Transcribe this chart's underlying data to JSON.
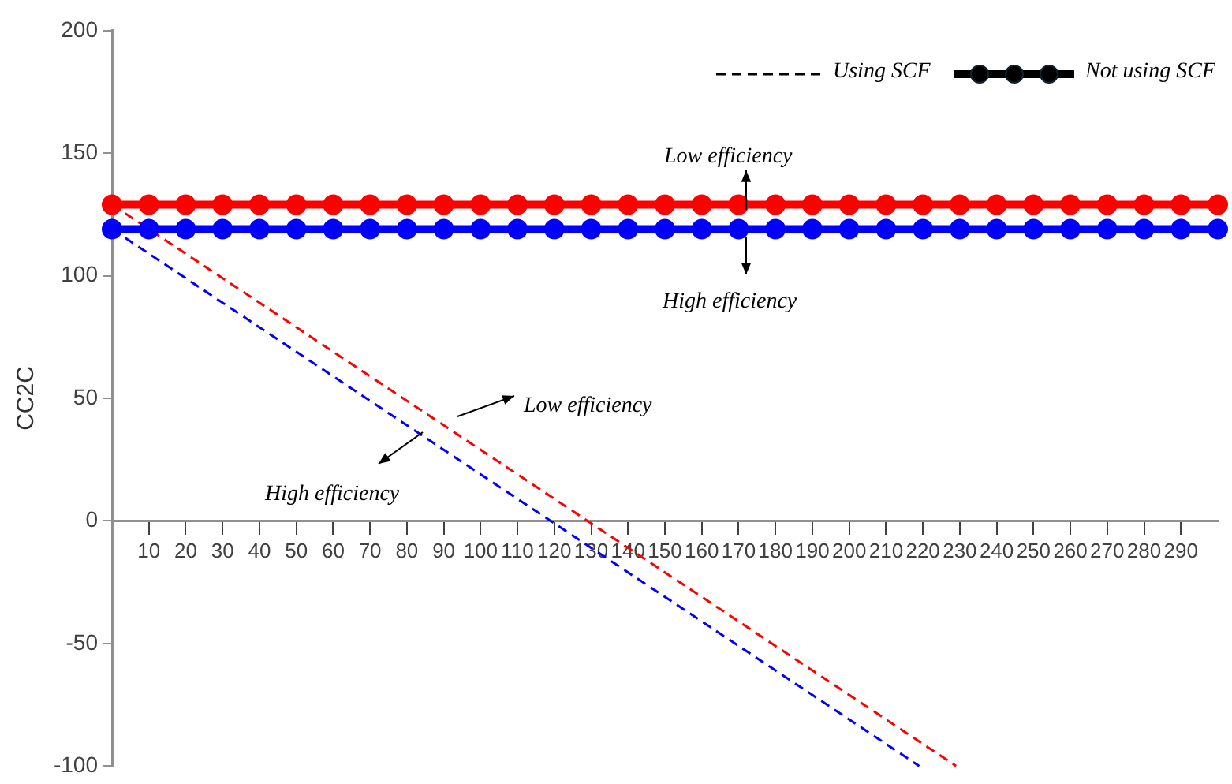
{
  "chart_data": {
    "type": "line",
    "ylabel": "CC2C",
    "annotations": [
      "Using SCF",
      "Not using SCF",
      "Low efficiency",
      "High efficiency",
      "Low efficiency",
      "High efficiency"
    ],
    "xlim": [
      0,
      300
    ],
    "xticks": [
      10,
      20,
      30,
      40,
      50,
      60,
      70,
      80,
      90,
      100,
      110,
      120,
      130,
      140,
      150,
      160,
      170,
      180,
      190,
      200,
      210,
      220,
      230,
      240,
      250,
      260,
      270,
      280,
      290
    ],
    "ylim": [
      -100,
      200
    ],
    "yticks": [
      -100,
      -50,
      0,
      50,
      100,
      150,
      200
    ],
    "grid": false,
    "legend": false,
    "series": [
      {
        "color": "#ff0000",
        "marker": "circle",
        "line_style": "solid",
        "x": [
          0,
          10,
          20,
          30,
          40,
          50,
          60,
          70,
          80,
          90,
          100,
          110,
          120,
          130,
          140,
          150,
          160,
          170,
          180,
          190,
          200,
          210,
          220,
          230,
          240,
          250,
          260,
          270,
          280,
          290,
          300
        ],
        "values": [
          129,
          129,
          129,
          129,
          129,
          129,
          129,
          129,
          129,
          129,
          129,
          129,
          129,
          129,
          129,
          129,
          129,
          129,
          129,
          129,
          129,
          129,
          129,
          129,
          129,
          129,
          129,
          129,
          129,
          129,
          129
        ]
      },
      {
        "color": "#0000ff",
        "marker": "circle",
        "line_style": "solid",
        "x": [
          0,
          10,
          20,
          30,
          40,
          50,
          60,
          70,
          80,
          90,
          100,
          110,
          120,
          130,
          140,
          150,
          160,
          170,
          180,
          190,
          200,
          210,
          220,
          230,
          240,
          250,
          260,
          270,
          280,
          290,
          300
        ],
        "values": [
          119,
          119,
          119,
          119,
          119,
          119,
          119,
          119,
          119,
          119,
          119,
          119,
          119,
          119,
          119,
          119,
          119,
          119,
          119,
          119,
          119,
          119,
          119,
          119,
          119,
          119,
          119,
          119,
          119,
          119,
          119
        ]
      },
      {
        "color": "#ff0000",
        "marker": "none",
        "line_style": "dashed",
        "x": [
          0,
          229
        ],
        "values": [
          129,
          -100
        ]
      },
      {
        "color": "#0000ff",
        "marker": "none",
        "line_style": "dashed",
        "x": [
          0,
          219
        ],
        "values": [
          119,
          -100
        ]
      }
    ]
  }
}
